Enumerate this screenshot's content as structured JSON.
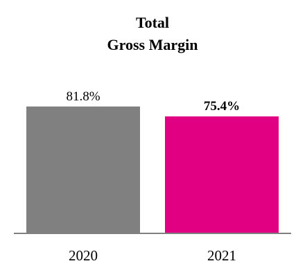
{
  "chart_data": {
    "type": "bar",
    "title_lines": [
      "Total",
      "Gross Margin"
    ],
    "categories": [
      "2020",
      "2021"
    ],
    "values": [
      81.8,
      75.4
    ],
    "value_labels": [
      "81.8%",
      "75.4%"
    ],
    "bold_labels": [
      false,
      true
    ],
    "bar_colors": [
      "#808080",
      "#E20082"
    ],
    "axis_color": "#808080",
    "ylim": [
      0,
      100
    ],
    "grid": false,
    "legend": "none"
  }
}
